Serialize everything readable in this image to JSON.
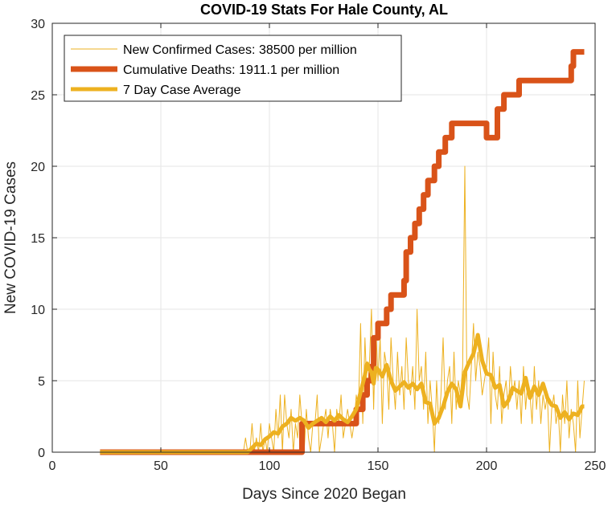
{
  "chart_data": {
    "type": "line",
    "title": "COVID-19 Stats For Hale County, AL",
    "xlabel": "Days Since 2020 Began",
    "ylabel": "New COVID-19 Cases",
    "xlim": [
      0,
      250
    ],
    "ylim": [
      0,
      30
    ],
    "xticks": [
      0,
      50,
      100,
      150,
      200,
      250
    ],
    "yticks": [
      0,
      5,
      10,
      15,
      20,
      25,
      30
    ],
    "grid": true,
    "legend_position": "top-left",
    "series": [
      {
        "name": "New Confirmed Cases: 38500 per million",
        "color": "#EDB120",
        "width": "thin",
        "x": [
          22,
          80,
          88,
          89,
          90,
          91,
          92,
          93,
          94,
          95,
          96,
          97,
          98,
          99,
          100,
          101,
          102,
          103,
          104,
          105,
          106,
          107,
          108,
          109,
          110,
          111,
          112,
          113,
          114,
          115,
          116,
          117,
          118,
          119,
          120,
          121,
          122,
          123,
          124,
          125,
          126,
          127,
          128,
          129,
          130,
          131,
          132,
          133,
          134,
          135,
          136,
          137,
          138,
          139,
          140,
          141,
          142,
          143,
          144,
          145,
          146,
          147,
          148,
          149,
          150,
          151,
          152,
          153,
          154,
          155,
          156,
          157,
          158,
          159,
          160,
          161,
          162,
          163,
          164,
          165,
          166,
          167,
          168,
          169,
          170,
          171,
          172,
          173,
          174,
          175,
          176,
          177,
          178,
          179,
          180,
          181,
          182,
          183,
          184,
          185,
          186,
          187,
          188,
          189,
          190,
          191,
          192,
          193,
          194,
          195,
          196,
          197,
          198,
          199,
          200,
          201,
          202,
          203,
          204,
          205,
          206,
          207,
          208,
          209,
          210,
          211,
          212,
          213,
          214,
          215,
          216,
          217,
          218,
          219,
          220,
          221,
          222,
          223,
          224,
          225,
          226,
          227,
          228,
          229,
          230,
          231,
          232,
          233,
          234,
          235,
          236,
          237,
          238,
          239,
          240,
          241,
          242,
          243,
          244,
          245
        ],
        "y": [
          0,
          0,
          0,
          1,
          0,
          0,
          2,
          0,
          1,
          0,
          2,
          0,
          1,
          0,
          2,
          1,
          0,
          3,
          1,
          4,
          0,
          4,
          2,
          1,
          3,
          0,
          2,
          1,
          4,
          2,
          0,
          3,
          1,
          0,
          2,
          2,
          4,
          0,
          1,
          2,
          3,
          1,
          3,
          2,
          0,
          3,
          2,
          4,
          1,
          2,
          3,
          2,
          1,
          2,
          4,
          3,
          9,
          2,
          8,
          4,
          6,
          10,
          3,
          9,
          5,
          8,
          2,
          7,
          6,
          3,
          8,
          5,
          3,
          7,
          4,
          6,
          3,
          8,
          5,
          4,
          6,
          3,
          10,
          5,
          6,
          3,
          7,
          2,
          5,
          3,
          0,
          5,
          2,
          4,
          8,
          3,
          5,
          6,
          2,
          7,
          3,
          5,
          4,
          6,
          20,
          4,
          3,
          6,
          9,
          5,
          7,
          6,
          4,
          5,
          6,
          8,
          2,
          7,
          4,
          3,
          6,
          2,
          4,
          5,
          3,
          6,
          4,
          5,
          3,
          5,
          2,
          6,
          3,
          5,
          4,
          2,
          6,
          3,
          5,
          2,
          4,
          3,
          4,
          0,
          3,
          4,
          2,
          3,
          0,
          4,
          2,
          5,
          1,
          3,
          2,
          0,
          5,
          1,
          3,
          5
        ]
      },
      {
        "name": "Cumulative Deaths: 1911.1 per million",
        "color": "#D95319",
        "width": "thick",
        "x": [
          22,
          115,
          115,
          140,
          140,
          143,
          143,
          145,
          145,
          147,
          147,
          148,
          148,
          150,
          150,
          154,
          154,
          156,
          156,
          162,
          162,
          163,
          163,
          165,
          165,
          167,
          167,
          169,
          169,
          171,
          171,
          173,
          173,
          176,
          176,
          178,
          178,
          181,
          181,
          184,
          184,
          188,
          188,
          191,
          191,
          200,
          200,
          202,
          202,
          205,
          205,
          208,
          208,
          211,
          211,
          215,
          215,
          219,
          219,
          239,
          239,
          240,
          240,
          245
        ],
        "y": [
          0,
          0,
          2,
          2,
          3,
          3,
          4,
          4,
          5,
          5,
          6,
          6,
          8,
          8,
          9,
          9,
          10,
          10,
          11,
          11,
          12,
          12,
          14,
          14,
          15,
          15,
          16,
          16,
          17,
          17,
          18,
          18,
          19,
          19,
          20,
          20,
          21,
          21,
          22,
          22,
          23,
          23,
          23,
          23,
          23,
          23,
          22,
          22,
          22,
          22,
          24,
          24,
          25,
          25,
          25,
          25,
          26,
          26,
          26,
          26,
          27,
          27,
          28,
          28
        ]
      },
      {
        "name": "7 Day Case Average",
        "color": "#EDB120",
        "width": "medium",
        "x": [
          22,
          90,
          92,
          94,
          96,
          98,
          100,
          102,
          104,
          106,
          108,
          110,
          112,
          114,
          116,
          118,
          120,
          122,
          124,
          126,
          128,
          130,
          132,
          134,
          136,
          138,
          140,
          141,
          142,
          143,
          144,
          145,
          146,
          147,
          148,
          149,
          150,
          152,
          154,
          156,
          158,
          160,
          162,
          164,
          166,
          168,
          170,
          172,
          174,
          176,
          178,
          180,
          182,
          184,
          186,
          188,
          190,
          192,
          194,
          196,
          198,
          200,
          202,
          204,
          206,
          208,
          210,
          212,
          214,
          216,
          218,
          220,
          222,
          224,
          226,
          228,
          230,
          232,
          234,
          236,
          238,
          240,
          242,
          244,
          245
        ],
        "y": [
          0,
          0,
          0.3,
          0.6,
          0.5,
          0.9,
          1.1,
          1.4,
          1.3,
          1.8,
          2.0,
          2.4,
          2.2,
          2.4,
          2.2,
          1.7,
          2.0,
          2.2,
          2.4,
          2.1,
          2.5,
          2.2,
          2.6,
          2.3,
          2.1,
          2.5,
          3.0,
          3.6,
          4.2,
          4.8,
          5.4,
          6.2,
          5.8,
          5.6,
          4.8,
          5.9,
          5.8,
          5.3,
          6.1,
          5.0,
          4.3,
          4.6,
          4.9,
          4.5,
          4.8,
          4.4,
          4.8,
          3.5,
          3.4,
          2.0,
          2.4,
          3.2,
          4.2,
          4.8,
          4.4,
          3.2,
          5.6,
          6.3,
          6.9,
          8.2,
          6.4,
          5.5,
          5.4,
          4.5,
          4.7,
          3.2,
          3.6,
          4.5,
          4.3,
          4.1,
          5.2,
          3.8,
          4.6,
          4.0,
          4.8,
          3.8,
          3.3,
          3.2,
          2.4,
          2.8,
          2.3,
          2.7,
          2.6,
          3.2,
          3.2
        ]
      }
    ]
  }
}
